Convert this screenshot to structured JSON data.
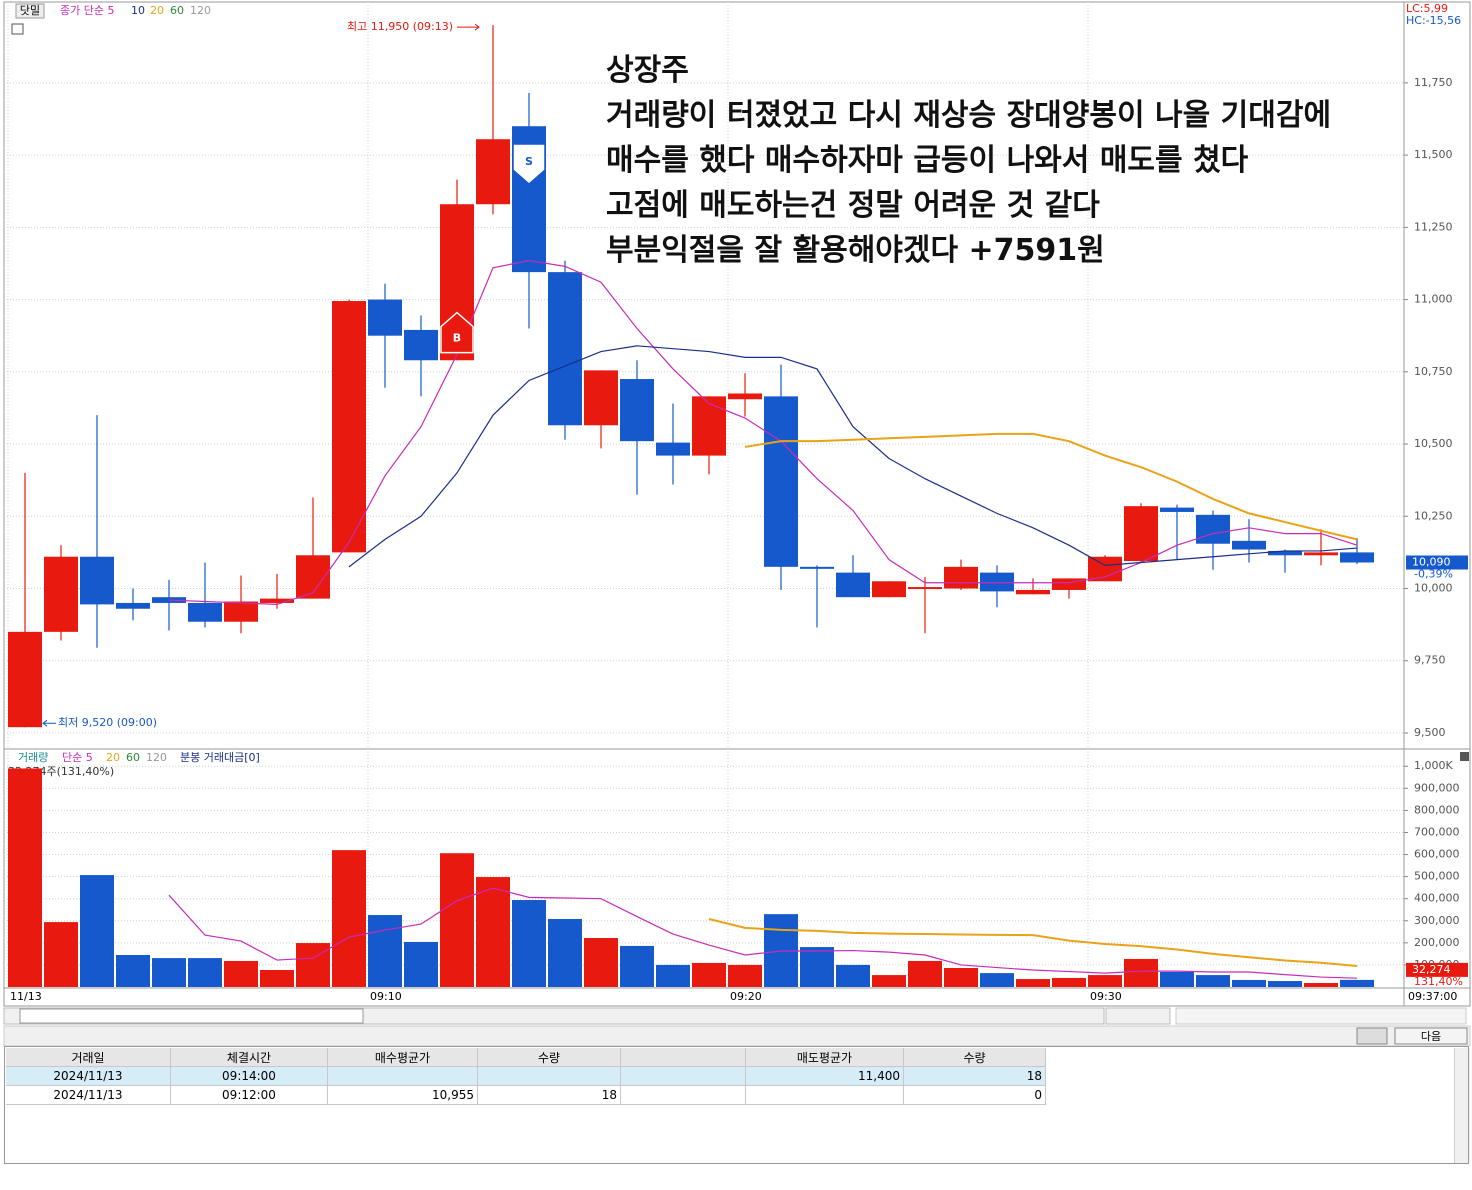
{
  "toolbar": {
    "button": "닷밀",
    "ma_label": "종가 단순 5",
    "ma_periods": [
      "10",
      "20",
      "60",
      "120"
    ],
    "lc": "LC:5,99",
    "hc": "HC:-15,56"
  },
  "price_chart": {
    "type": "candlestick",
    "annotation": [
      "상장주",
      "거래량이 터졌었고 다시 재상승 장대양봉이 나올 기대감에",
      "매수를 했다 매수하자마 급등이 나와서 매도를 쳤다",
      "고점에 매도하는건 정말 어려운 것 같다",
      "부분익절을 잘 활용해야겠다 +7591원"
    ],
    "high_label": "최고 11,950 (09:13)",
    "low_label": "최저 9,520 (09:00)",
    "categories": [
      "11/13",
      null,
      null,
      null,
      null,
      null,
      null,
      null,
      null,
      null,
      "09:10",
      null,
      null,
      null,
      null,
      null,
      null,
      null,
      null,
      null,
      "09:20",
      null,
      null,
      null,
      null,
      null,
      null,
      null,
      null,
      null,
      "09:30",
      null,
      null,
      null,
      null,
      null,
      null,
      null
    ],
    "current_time": "09:37:00",
    "open": [
      9520,
      9850,
      10110,
      9950,
      9970,
      9950,
      9885,
      9950,
      9965,
      10125,
      11000,
      10895,
      10790,
      11330,
      11600,
      11095,
      10565,
      10725,
      10505,
      10460,
      10655,
      10665,
      10075,
      10055,
      9970,
      10000,
      10000,
      10055,
      9980,
      9995,
      10025,
      10095,
      10280,
      10255,
      10165,
      10130,
      10115,
      10125
    ],
    "high": [
      10400,
      10150,
      10600,
      10000,
      10030,
      10090,
      10045,
      10050,
      10315,
      11000,
      11055,
      10945,
      11415,
      11950,
      11715,
      11135,
      10755,
      10790,
      10640,
      10665,
      10745,
      10775,
      10080,
      10115,
      10025,
      10040,
      10100,
      10080,
      10035,
      10035,
      10115,
      10295,
      10290,
      10270,
      10240,
      10135,
      10205,
      10175
    ],
    "low": [
      9520,
      9820,
      9795,
      9890,
      9855,
      9865,
      9845,
      9930,
      9965,
      10125,
      10695,
      10665,
      10790,
      11295,
      10900,
      10515,
      10485,
      10325,
      10360,
      10395,
      10595,
      9995,
      9865,
      9970,
      9970,
      9845,
      9995,
      9935,
      9980,
      9965,
      10025,
      10090,
      10100,
      10065,
      10090,
      10055,
      10080,
      10085
    ],
    "close": [
      9850,
      10110,
      9945,
      9930,
      9950,
      9885,
      9955,
      9965,
      10115,
      10995,
      10875,
      10790,
      11330,
      11555,
      11095,
      10565,
      10755,
      10510,
      10460,
      10665,
      10675,
      10075,
      10070,
      9970,
      10025,
      10005,
      10075,
      9990,
      9995,
      10035,
      10110,
      10285,
      10265,
      10155,
      10135,
      10115,
      10125,
      10090
    ],
    "up_color": "#e8190e",
    "down_color": "#1559cc",
    "ma": [
      {
        "name": "5",
        "color": "#c82bb8",
        "values": [
          null,
          null,
          null,
          null,
          9960,
          9955,
          9950,
          9945,
          9985,
          10160,
          10390,
          10560,
          10810,
          11110,
          11135,
          11115,
          11060,
          10900,
          10760,
          10640,
          10590,
          10510,
          10380,
          10270,
          10100,
          10020,
          10020,
          10020,
          10020,
          10020,
          10040,
          10090,
          10150,
          10190,
          10210,
          10190,
          10190,
          10150
        ]
      },
      {
        "name": "10",
        "color": "#1a2e8a",
        "values": [
          null,
          null,
          null,
          null,
          null,
          null,
          null,
          null,
          null,
          10075,
          10170,
          10250,
          10400,
          10600,
          10720,
          10770,
          10820,
          10840,
          10830,
          10820,
          10800,
          10800,
          10760,
          10560,
          10450,
          10380,
          10320,
          10260,
          10210,
          10150,
          10080,
          10090,
          10100,
          10110,
          10120,
          10130,
          10130,
          10140
        ]
      },
      {
        "name": "20",
        "color": "#e8a317",
        "values": [
          null,
          null,
          null,
          null,
          null,
          null,
          null,
          null,
          null,
          null,
          null,
          null,
          null,
          null,
          null,
          null,
          null,
          null,
          null,
          null,
          10490,
          10510,
          10510,
          10515,
          10520,
          10525,
          10530,
          10535,
          10535,
          10510,
          10460,
          10420,
          10370,
          10310,
          10260,
          10230,
          10200,
          10170
        ]
      }
    ],
    "markers": [
      {
        "label": "B",
        "candle": 12,
        "price": 10955,
        "color": "#e8190e"
      },
      {
        "label": "S",
        "candle": 14,
        "price": 11400,
        "color": "#1559cc"
      }
    ],
    "ylim": [
      9448,
      12023
    ],
    "yticks": [
      {
        "value": 9500,
        "label": "9,500"
      },
      {
        "value": 9750,
        "label": "9,750"
      },
      {
        "value": 10000,
        "label": "10,000"
      },
      {
        "value": 10250,
        "label": "10,250"
      },
      {
        "value": 10500,
        "label": "10,500"
      },
      {
        "value": 10750,
        "label": "10,750"
      },
      {
        "value": 11000,
        "label": "11,000"
      },
      {
        "value": 11250,
        "label": "11,250"
      },
      {
        "value": 11500,
        "label": "11,500"
      },
      {
        "value": 11750,
        "label": "11,750"
      }
    ],
    "last": {
      "value": 10090,
      "label": "10,090",
      "change": "-0,39%"
    }
  },
  "volume_chart": {
    "type": "bar",
    "legend": [
      "거래량",
      "단순 5",
      "20",
      "60",
      "120",
      "분봉 거래대금[0]"
    ],
    "info": "32,274주(131,40%)",
    "values": [
      990000,
      294000,
      507000,
      145000,
      131000,
      131000,
      118000,
      77000,
      199000,
      620000,
      326000,
      204000,
      606000,
      498000,
      394000,
      308000,
      222000,
      186000,
      100000,
      109000,
      100000,
      330000,
      181000,
      100000,
      54000,
      118000,
      86000,
      63000,
      36000,
      41000,
      54000,
      127000,
      68000,
      54000,
      32000,
      27000,
      18000,
      32274
    ],
    "ma": [
      {
        "name": "5",
        "color": "#c82bb8",
        "values": [
          null,
          null,
          null,
          null,
          416000,
          235000,
          208000,
          122000,
          131000,
          226000,
          258000,
          285000,
          391000,
          448000,
          406000,
          403000,
          400000,
          319000,
          240000,
          190000,
          145000,
          163000,
          163000,
          165000,
          158000,
          145000,
          100000,
          88000,
          77000,
          70000,
          63000,
          72000,
          72000,
          68000,
          68000,
          56000,
          45000,
          40000
        ]
      },
      {
        "name": "20",
        "color": "#e8a317",
        "values": [
          null,
          null,
          null,
          null,
          null,
          null,
          null,
          null,
          null,
          null,
          null,
          null,
          null,
          null,
          null,
          null,
          null,
          null,
          null,
          308000,
          268000,
          259000,
          254000,
          245000,
          242000,
          240000,
          238000,
          236000,
          235000,
          210000,
          195000,
          185000,
          170000,
          150000,
          135000,
          120000,
          110000,
          95000
        ]
      }
    ],
    "ylim": [
      0,
      1060000
    ],
    "yticks": [
      {
        "value": 100000,
        "label": "100,000"
      },
      {
        "value": 200000,
        "label": "200,000"
      },
      {
        "value": 300000,
        "label": "300,000"
      },
      {
        "value": 400000,
        "label": "400,000"
      },
      {
        "value": 500000,
        "label": "500,000"
      },
      {
        "value": 600000,
        "label": "600,000"
      },
      {
        "value": 700000,
        "label": "700,000"
      },
      {
        "value": 800000,
        "label": "800,000"
      },
      {
        "value": 900000,
        "label": "900,000"
      },
      {
        "value": 1000000,
        "label": "1,000K"
      }
    ],
    "last": {
      "value": 32274,
      "label": "32,274",
      "ratio": "131,40%"
    }
  },
  "next_button": "다음",
  "table": {
    "headers": [
      "거래일",
      "체결시간",
      "매수평균가",
      "수량",
      null,
      "매도평균가",
      "수량"
    ],
    "rows": [
      [
        "2024/11/13",
        "09:14:00",
        null,
        null,
        null,
        "11,400",
        "18"
      ],
      [
        "2024/11/13",
        "09:12:00",
        "10,955",
        "18",
        null,
        null,
        "0"
      ]
    ]
  }
}
